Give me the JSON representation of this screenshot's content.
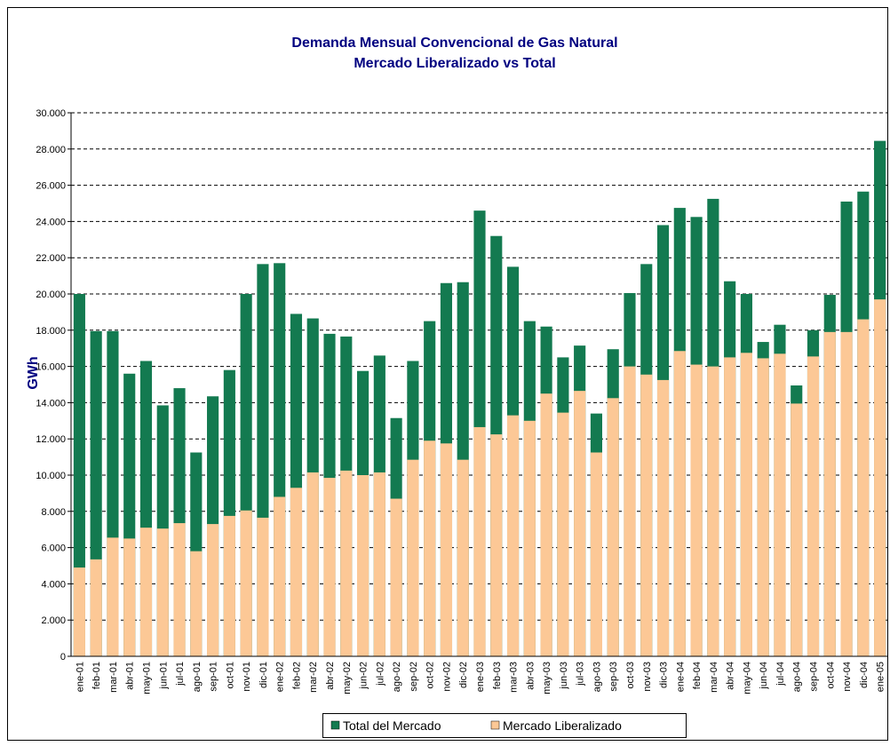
{
  "chart_data": {
    "type": "bar",
    "title": "Demanda Mensual Convencional de Gas Natural",
    "subtitle": "Mercado Liberalizado vs Total",
    "y_label": "GWh",
    "categories": [
      "ene-01",
      "feb-01",
      "mar-01",
      "abr-01",
      "may-01",
      "jun-01",
      "jul-01",
      "ago-01",
      "sep-01",
      "oct-01",
      "nov-01",
      "dic-01",
      "ene-02",
      "feb-02",
      "mar-02",
      "abr-02",
      "may-02",
      "jun-02",
      "jul-02",
      "ago-02",
      "sep-02",
      "oct-02",
      "nov-02",
      "dic-02",
      "ene-03",
      "feb-03",
      "mar-03",
      "abr-03",
      "may-03",
      "jun-03",
      "jul-03",
      "ago-03",
      "sep-03",
      "oct-03",
      "nov-03",
      "dic-03",
      "ene-04",
      "feb-04",
      "mar-04",
      "abr-04",
      "may-04",
      "jun-04",
      "jul-04",
      "ago-04",
      "sep-04",
      "oct-04",
      "nov-04",
      "dic-04",
      "ene-05"
    ],
    "series": [
      {
        "name": "Total del Mercado",
        "color": "#137a50",
        "values": [
          20000,
          17950,
          17950,
          15600,
          16300,
          13850,
          14800,
          11250,
          14350,
          15800,
          20000,
          21650,
          21700,
          18900,
          18650,
          17800,
          17650,
          15750,
          16600,
          13150,
          16300,
          18500,
          20600,
          20650,
          24600,
          23200,
          21500,
          18500,
          18200,
          16500,
          17150,
          13400,
          16950,
          20050,
          21650,
          23800,
          24750,
          24250,
          25250,
          20700,
          20000,
          17350,
          18300,
          14950,
          18000,
          19950,
          25100,
          25650,
          28450
        ]
      },
      {
        "name": "Mercado Liberalizado",
        "color": "#fcc896",
        "values": [
          4900,
          5350,
          6550,
          6500,
          7100,
          7050,
          7350,
          5800,
          7300,
          7750,
          8050,
          7650,
          8800,
          9300,
          10150,
          9850,
          10250,
          10000,
          10150,
          8700,
          10850,
          11900,
          11750,
          10850,
          12650,
          12250,
          13300,
          13000,
          14500,
          13450,
          14650,
          11250,
          14250,
          16000,
          15550,
          15250,
          16850,
          16100,
          16000,
          16500,
          16750,
          16450,
          16700,
          13950,
          16550,
          17900,
          17900,
          18600,
          19700
        ]
      }
    ],
    "ylim": [
      0,
      30000
    ],
    "yticks": [
      0,
      {
        "value": 2000,
        "label": "2.000"
      },
      {
        "value": 4000,
        "label": "4.000"
      },
      {
        "value": 6000,
        "label": "6.000"
      },
      {
        "value": 8000,
        "label": "8.000"
      },
      {
        "value": 10000,
        "label": "10.000"
      },
      {
        "value": 12000,
        "label": "12.000"
      },
      {
        "value": 14000,
        "label": "14.000"
      },
      {
        "value": 16000,
        "label": "16.000"
      },
      {
        "value": 18000,
        "label": "18.000"
      },
      {
        "value": 20000,
        "label": "20.000"
      },
      {
        "value": 22000,
        "label": "22.000"
      },
      {
        "value": 24000,
        "label": "24.000"
      },
      {
        "value": 26000,
        "label": "26.000"
      },
      {
        "value": 28000,
        "label": "28.000"
      },
      {
        "value": 30000,
        "label": "30.000"
      }
    ],
    "grid": true,
    "legend": "bottom"
  }
}
